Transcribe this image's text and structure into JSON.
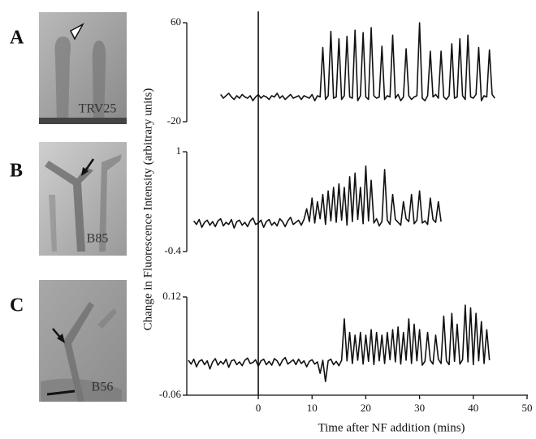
{
  "chart_data": [
    {
      "type": "line",
      "panel_label": "A",
      "image_label": "TRV25",
      "color": "#111111",
      "ylabel": "Change in Fluorescence Intensity (arbitrary units)",
      "ylim": [
        -20,
        60
      ],
      "yticks": [
        -20,
        60
      ],
      "x": [
        -7,
        -6.5,
        -6,
        -5.5,
        -5,
        -4.5,
        -4,
        -3.5,
        -3,
        -2.5,
        -2,
        -1.5,
        -1,
        -0.5,
        0,
        0.5,
        1,
        1.5,
        2,
        2.5,
        3,
        3.5,
        4,
        4.5,
        5,
        5.5,
        6,
        6.5,
        7,
        7.5,
        8,
        8.5,
        9,
        9.5,
        10,
        10.5,
        11,
        11.5,
        12,
        12.5,
        13,
        13.5,
        14,
        14.5,
        15,
        15.5,
        16,
        16.5,
        17,
        17.5,
        18,
        18.5,
        19,
        19.5,
        20,
        20.5,
        21,
        21.5,
        22,
        22.5,
        23,
        23.5,
        24,
        24.5,
        25,
        25.5,
        26,
        26.5,
        27,
        27.5,
        28,
        28.5,
        29,
        29.5,
        30,
        30.5,
        31,
        31.5,
        32,
        32.5,
        33,
        33.5,
        34,
        34.5,
        35,
        35.5,
        36,
        36.5,
        37,
        37.5,
        38,
        38.5,
        39,
        39.5,
        40,
        40.5,
        41,
        41.5,
        42,
        42.5,
        43,
        43.5,
        44
      ],
      "values": [
        2,
        -1,
        1,
        3,
        0,
        -2,
        1,
        -1,
        2,
        0,
        -1,
        1,
        -3,
        0,
        2,
        -1,
        1,
        0,
        -2,
        1,
        0,
        3,
        -1,
        1,
        -2,
        0,
        2,
        -1,
        0,
        1,
        -2,
        1,
        0,
        -1,
        2,
        -3,
        1,
        0,
        40,
        -2,
        1,
        53,
        -1,
        0,
        47,
        -2,
        1,
        49,
        0,
        -1,
        54,
        -3,
        1,
        52,
        0,
        -2,
        56,
        1,
        -1,
        0,
        41,
        -2,
        1,
        0,
        50,
        -1,
        2,
        -3,
        0,
        39,
        1,
        -2,
        0,
        1,
        60,
        -1,
        -3,
        1,
        37,
        0,
        2,
        -1,
        37,
        0,
        -2,
        1,
        43,
        -1,
        0,
        47,
        1,
        -2,
        50,
        0,
        -1,
        2,
        40,
        -3,
        1,
        0,
        38,
        2,
        -1
      ]
    },
    {
      "type": "line",
      "panel_label": "B",
      "image_label": "B85",
      "color": "#111111",
      "ylim": [
        -0.4,
        1
      ],
      "yticks": [
        -0.4,
        1
      ],
      "x": [
        -12,
        -11.5,
        -11,
        -10.5,
        -10,
        -9.5,
        -9,
        -8.5,
        -8,
        -7.5,
        -7,
        -6.5,
        -6,
        -5.5,
        -5,
        -4.5,
        -4,
        -3.5,
        -3,
        -2.5,
        -2,
        -1.5,
        -1,
        -0.5,
        0,
        0.5,
        1,
        1.5,
        2,
        2.5,
        3,
        3.5,
        4,
        4.5,
        5,
        5.5,
        6,
        6.5,
        7,
        7.5,
        8,
        8.5,
        9,
        9.5,
        10,
        10.5,
        11,
        11.5,
        12,
        12.5,
        13,
        13.5,
        14,
        14.5,
        15,
        15.5,
        16,
        16.5,
        17,
        17.5,
        18,
        18.5,
        19,
        19.5,
        20,
        20.5,
        21,
        21.5,
        22,
        22.5,
        23,
        23.5,
        24,
        24.5,
        25,
        25.5,
        26,
        26.5,
        27,
        27.5,
        28,
        28.5,
        29,
        29.5,
        30,
        30.5,
        31,
        31.5,
        32,
        32.5,
        33,
        33.5,
        34
      ],
      "values": [
        0.03,
        -0.02,
        0.05,
        -0.06,
        0.01,
        0.04,
        -0.03,
        0.02,
        -0.05,
        0.03,
        0.06,
        -0.04,
        0.01,
        -0.02,
        0.05,
        -0.07,
        0.02,
        0.04,
        -0.03,
        0.01,
        -0.05,
        0.03,
        0.07,
        -0.02,
        0.0,
        0.04,
        -0.06,
        0.02,
        0.05,
        -0.03,
        0.01,
        -0.04,
        0.06,
        0.02,
        -0.05,
        0.03,
        0.08,
        -0.02,
        0.01,
        0.04,
        -0.03,
        0.05,
        0.2,
        0.02,
        0.35,
        0.0,
        0.3,
        0.06,
        0.4,
        -0.02,
        0.45,
        0.03,
        0.5,
        0.01,
        0.55,
        0.04,
        0.5,
        -0.03,
        0.65,
        0.02,
        0.7,
        0.05,
        0.5,
        -0.01,
        0.8,
        0.03,
        0.6,
        0.0,
        0.06,
        -0.04,
        0.02,
        0.75,
        0.04,
        -0.02,
        0.4,
        0.05,
        0.01,
        -0.03,
        0.3,
        0.06,
        0.02,
        0.4,
        -0.01,
        0.04,
        0.45,
        0.0,
        0.03,
        -0.02,
        0.35,
        0.05,
        0.01,
        0.3,
        0.02
      ]
    },
    {
      "type": "line",
      "panel_label": "C",
      "image_label": "B56",
      "color": "#111111",
      "xlabel": "Time after NF addition (mins)",
      "ylim": [
        -0.06,
        0.12
      ],
      "yticks": [
        -0.06,
        0.12
      ],
      "xlim": [
        -13,
        50
      ],
      "xticks": [
        0,
        10,
        20,
        30,
        40,
        50
      ],
      "x": [
        -13,
        -12.5,
        -12,
        -11.5,
        -11,
        -10.5,
        -10,
        -9.5,
        -9,
        -8.5,
        -8,
        -7.5,
        -7,
        -6.5,
        -6,
        -5.5,
        -5,
        -4.5,
        -4,
        -3.5,
        -3,
        -2.5,
        -2,
        -1.5,
        -1,
        -0.5,
        0,
        0.5,
        1,
        1.5,
        2,
        2.5,
        3,
        3.5,
        4,
        4.5,
        5,
        5.5,
        6,
        6.5,
        7,
        7.5,
        8,
        8.5,
        9,
        9.5,
        10,
        10.5,
        11,
        11.5,
        12,
        12.5,
        13,
        13.5,
        14,
        14.5,
        15,
        15.5,
        16,
        16.5,
        17,
        17.5,
        18,
        18.5,
        19,
        19.5,
        20,
        20.5,
        21,
        21.5,
        22,
        22.5,
        23,
        23.5,
        24,
        24.5,
        25,
        25.5,
        26,
        26.5,
        27,
        27.5,
        28,
        28.5,
        29,
        29.5,
        30,
        30.5,
        31,
        31.5,
        32,
        32.5,
        33,
        33.5,
        34,
        34.5,
        35,
        35.5,
        36,
        36.5,
        37,
        37.5,
        38,
        38.5,
        39,
        39.5,
        40,
        40.5,
        41,
        41.5,
        42,
        42.5,
        43
      ],
      "values": [
        0.004,
        -0.003,
        0.006,
        -0.008,
        0.002,
        0.005,
        -0.004,
        0.003,
        -0.012,
        0.001,
        0.007,
        -0.005,
        0.002,
        -0.003,
        0.006,
        -0.009,
        0.003,
        0.005,
        -0.004,
        0.001,
        -0.006,
        0.004,
        0.008,
        -0.002,
        0.0,
        0.005,
        -0.007,
        0.003,
        0.006,
        -0.004,
        0.002,
        -0.005,
        0.007,
        0.003,
        -0.006,
        0.004,
        0.009,
        -0.003,
        0.001,
        0.005,
        -0.004,
        0.006,
        -0.002,
        0.003,
        -0.008,
        0.002,
        0.005,
        -0.003,
        0.001,
        -0.02,
        0.004,
        -0.035,
        0.003,
        0.006,
        -0.004,
        0.002,
        -0.006,
        0.004,
        0.08,
        0.003,
        0.055,
        -0.002,
        0.05,
        0.004,
        0.055,
        -0.003,
        0.05,
        0.002,
        0.06,
        -0.004,
        0.055,
        0.003,
        0.05,
        -0.002,
        0.055,
        0.005,
        0.06,
        0.001,
        0.065,
        -0.003,
        0.055,
        0.004,
        0.08,
        -0.002,
        0.07,
        0.003,
        0.06,
        -0.005,
        0.002,
        0.055,
        0.004,
        -0.003,
        0.05,
        0.006,
        -0.002,
        0.085,
        0.003,
        -0.004,
        0.09,
        0.002,
        0.07,
        -0.003,
        0.005,
        0.105,
        0.001,
        0.1,
        -0.004,
        0.09,
        0.003,
        0.075,
        -0.002,
        0.06,
        0.004
      ]
    }
  ]
}
